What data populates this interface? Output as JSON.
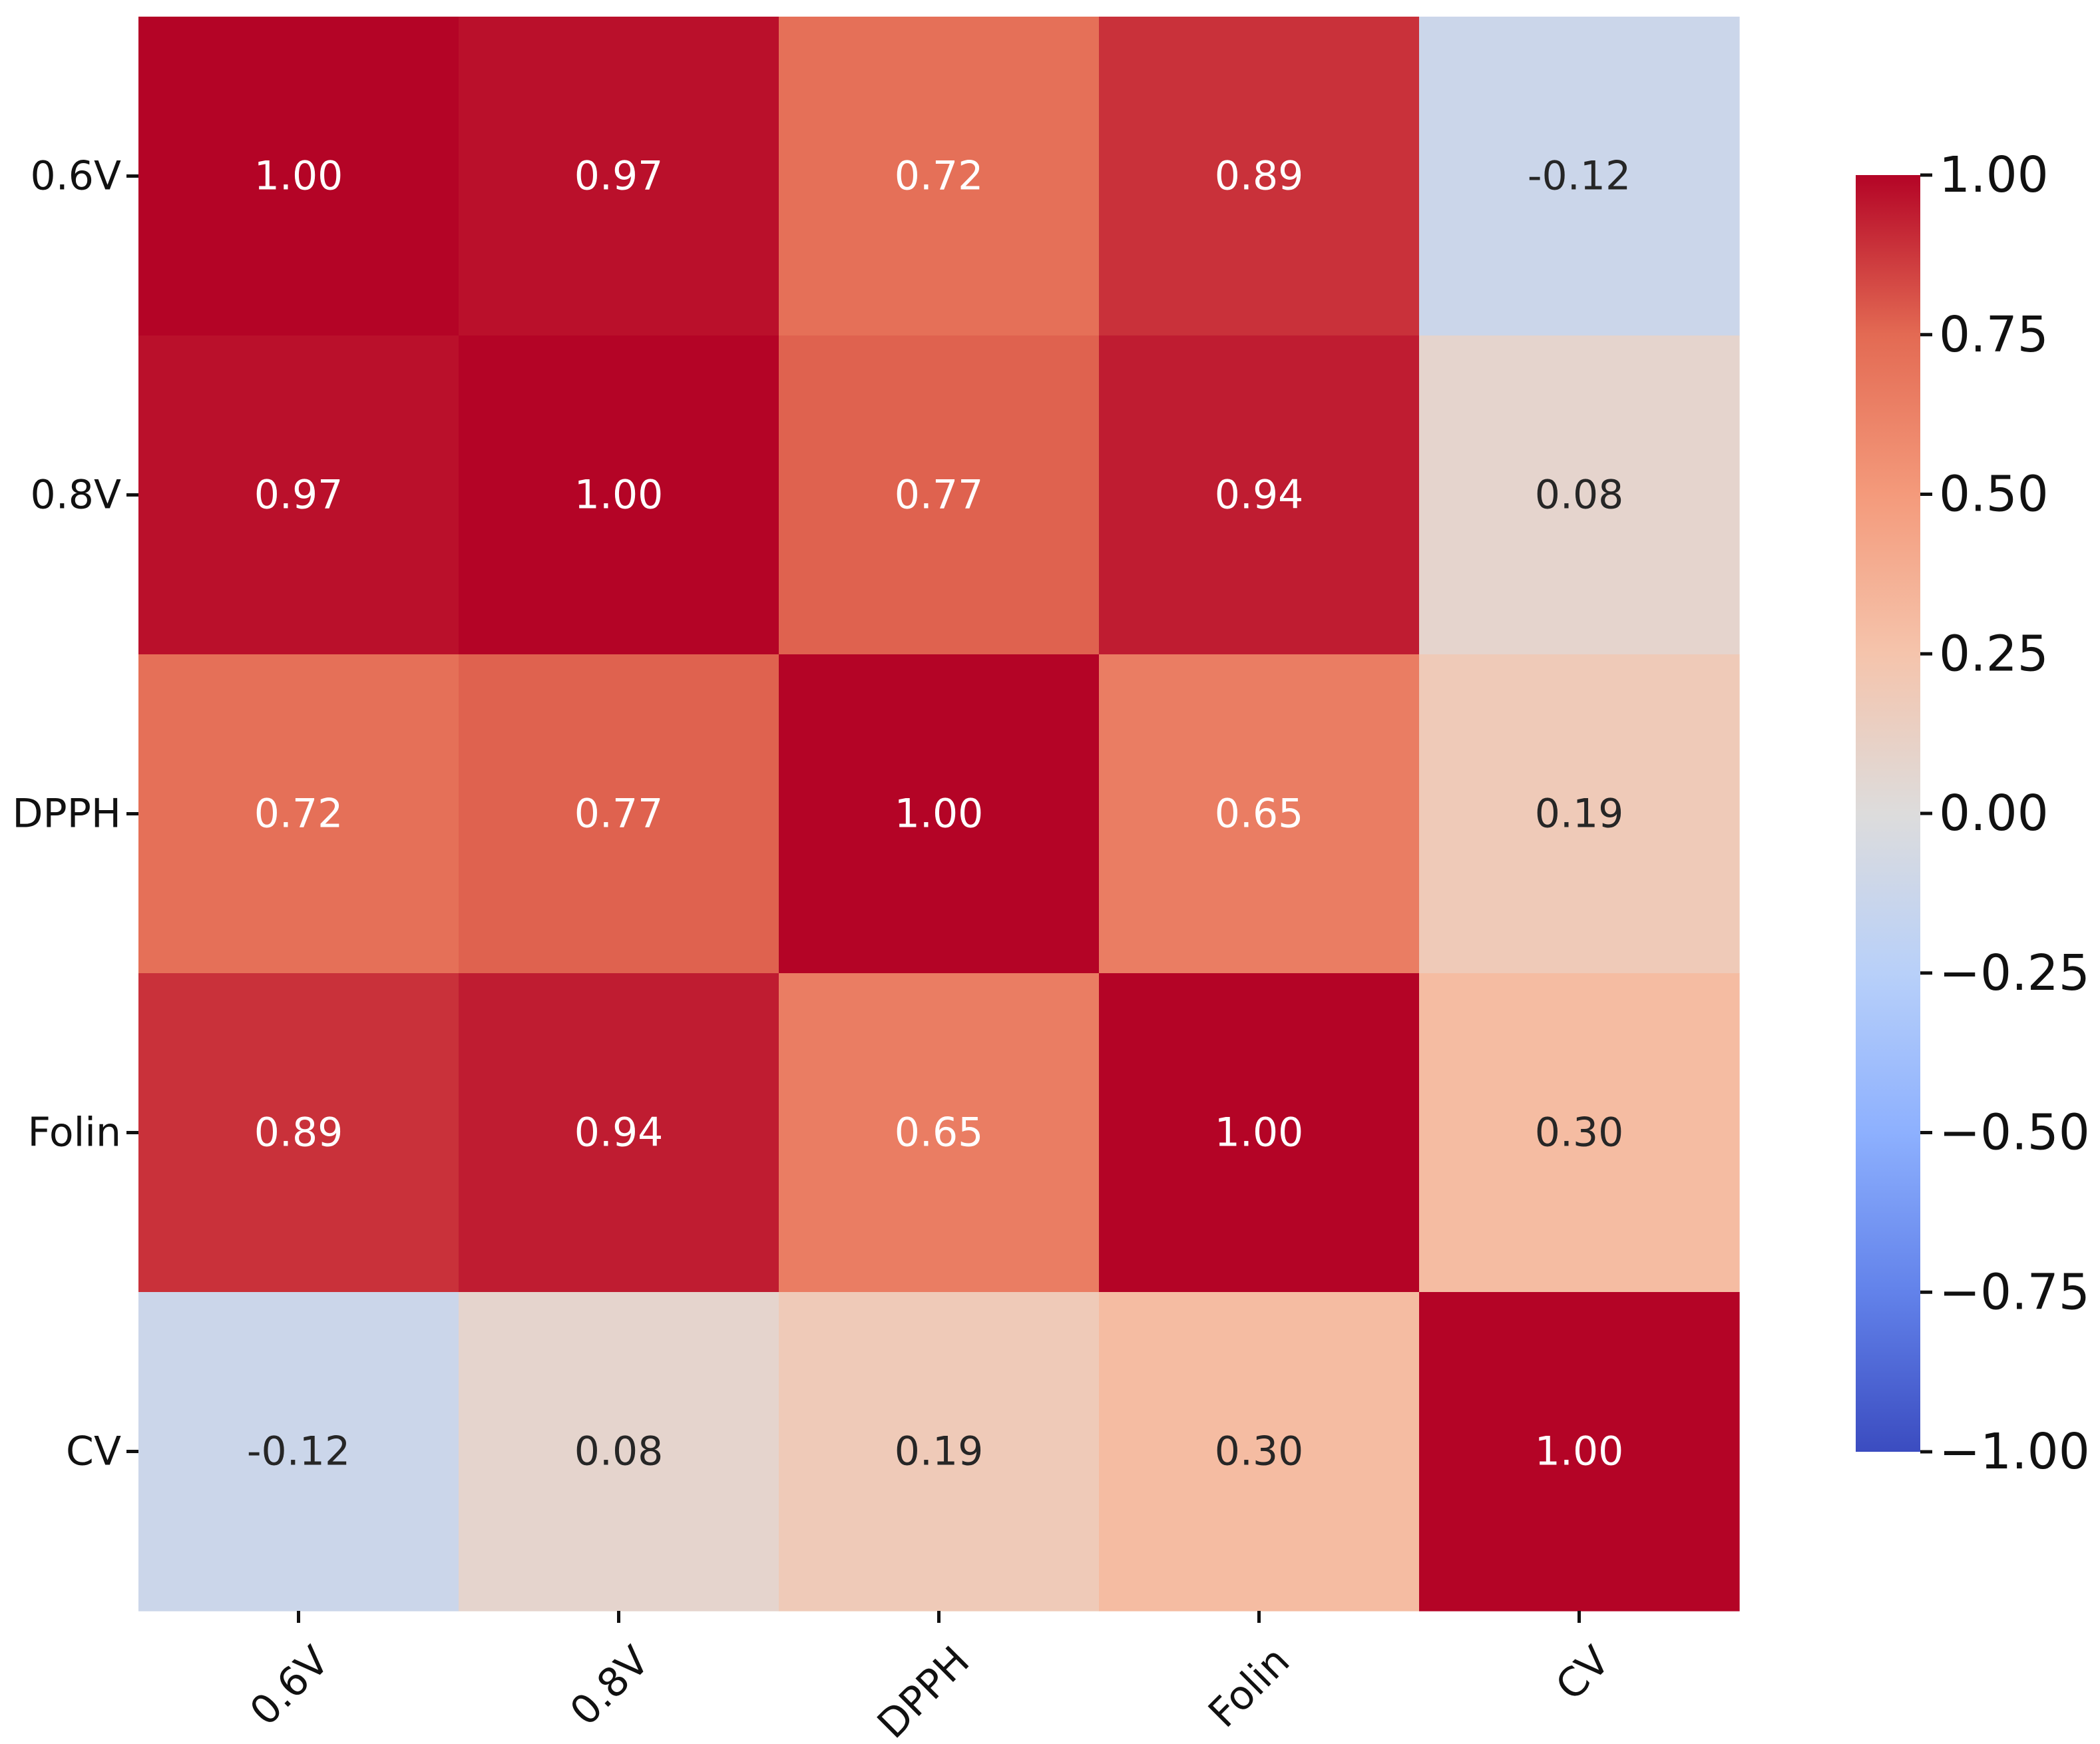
{
  "chart_data": {
    "type": "heatmap",
    "title": "",
    "xlabel": "",
    "ylabel": "",
    "row_labels": [
      "0.6V",
      "0.8V",
      "DPPH",
      "Folin",
      "CV"
    ],
    "col_labels": [
      "0.6V",
      "0.8V",
      "DPPH",
      "Folin",
      "CV"
    ],
    "values": [
      [
        1.0,
        0.97,
        0.72,
        0.89,
        -0.12
      ],
      [
        0.97,
        1.0,
        0.77,
        0.94,
        0.08
      ],
      [
        0.72,
        0.77,
        1.0,
        0.65,
        0.19
      ],
      [
        0.89,
        0.94,
        0.65,
        1.0,
        0.3
      ],
      [
        -0.12,
        0.08,
        0.19,
        0.3,
        1.0
      ]
    ],
    "value_labels": [
      [
        "1.00",
        "0.97",
        "0.72",
        "0.89",
        "-0.12"
      ],
      [
        "0.97",
        "1.00",
        "0.77",
        "0.94",
        "0.08"
      ],
      [
        "0.72",
        "0.77",
        "1.00",
        "0.65",
        "0.19"
      ],
      [
        "0.89",
        "0.94",
        "0.65",
        "1.00",
        "0.30"
      ],
      [
        "-0.12",
        "0.08",
        "0.19",
        "0.30",
        "1.00"
      ]
    ],
    "colormap": "coolwarm",
    "vmin": -1.0,
    "vmax": 1.0,
    "colorbar": {
      "ticks": [
        1.0,
        0.75,
        0.5,
        0.25,
        0.0,
        -0.25,
        -0.5,
        -0.75,
        -1.0
      ],
      "tick_labels": [
        "1.00",
        "0.75",
        "0.50",
        "0.25",
        "0.00",
        "−0.25",
        "−0.50",
        "−0.75",
        "−1.00"
      ]
    },
    "colormap_stops": [
      {
        "value": -1.0,
        "color": "#3b4cc0"
      },
      {
        "value": -0.75,
        "color": "#6282ea"
      },
      {
        "value": -0.5,
        "color": "#8db0fe"
      },
      {
        "value": -0.25,
        "color": "#b8d0f9"
      },
      {
        "value": 0.0,
        "color": "#dddcdc"
      },
      {
        "value": 0.25,
        "color": "#f5c4ac"
      },
      {
        "value": 0.5,
        "color": "#f49a7b"
      },
      {
        "value": 0.75,
        "color": "#e36a53"
      },
      {
        "value": 1.0,
        "color": "#b40426"
      }
    ]
  }
}
